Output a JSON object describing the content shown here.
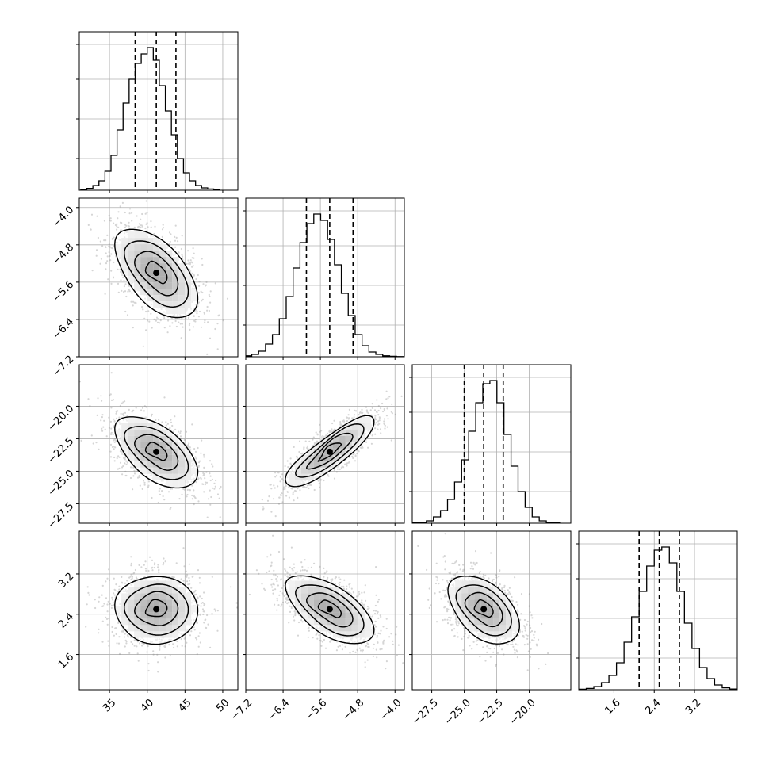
{
  "chart_data": {
    "type": "corner",
    "n_params": 4,
    "params": [
      {
        "range": [
          31,
          52
        ],
        "ticks": [
          35,
          40,
          45,
          50
        ],
        "tick_labels": [
          "35",
          "40",
          "45",
          "50"
        ],
        "mean": 41.2,
        "sd": 2.6,
        "quantiles": [
          38.4,
          41.2,
          43.8
        ],
        "hist": [
          0.5,
          1.2,
          3,
          6,
          12,
          22,
          38,
          55,
          70,
          80,
          86,
          90,
          82,
          66,
          50,
          35,
          20,
          11,
          6,
          3,
          1.5,
          0.8,
          0.3
        ],
        "hist_range": [
          31.2,
          49.6
        ]
      },
      {
        "range": [
          -7.2,
          -3.8
        ],
        "ticks": [
          -7.2,
          -6.4,
          -5.6,
          -4.8,
          -4.0
        ],
        "tick_labels": [
          "−7.2",
          "−6.4",
          "−5.6",
          "−4.8",
          "−4.0"
        ],
        "mean": -5.4,
        "sd": 0.45,
        "quantiles": [
          -5.9,
          -5.4,
          -4.9
        ],
        "hist": [
          0.6,
          1.5,
          3.5,
          8,
          14,
          24,
          38,
          56,
          72,
          84,
          90,
          86,
          74,
          58,
          40,
          26,
          14,
          7,
          3,
          1.5,
          0.6,
          0.3,
          0.1
        ],
        "hist_range": [
          -7.22,
          -3.82
        ]
      },
      {
        "range": [
          -29.0,
          -16.8
        ],
        "ticks": [
          -27.5,
          -25.0,
          -22.5,
          -20.0
        ],
        "tick_labels": [
          "−27.5",
          "−25.0",
          "−22.5",
          "−20.0"
        ],
        "mean": -23.5,
        "sd": 1.3,
        "quantiles": [
          -25.0,
          -23.5,
          -22.0
        ],
        "hist": [
          0.2,
          0.6,
          1.5,
          4,
          8,
          15,
          26,
          40,
          58,
          76,
          88,
          90,
          76,
          56,
          36,
          20,
          10,
          4,
          1.5,
          0.5,
          0.2
        ],
        "hist_range": [
          -29.0,
          -17.6
        ]
      },
      {
        "range": [
          0.9,
          4.05
        ],
        "ticks": [
          1.6,
          2.4,
          3.2
        ],
        "tick_labels": [
          "1.6",
          "2.4",
          "3.2"
        ],
        "mean": 2.5,
        "sd": 0.32,
        "quantiles": [
          2.1,
          2.5,
          2.9
        ],
        "hist": [
          0.3,
          0.8,
          2,
          4.5,
          9,
          17,
          30,
          46,
          62,
          78,
          88,
          90,
          80,
          62,
          42,
          26,
          14,
          7,
          3,
          1.2,
          0.4
        ],
        "hist_range": [
          0.9,
          4.05
        ]
      }
    ],
    "hist_yticks_fraction": [
      0.2,
      0.45,
      0.7,
      0.92
    ],
    "correlations": [
      [
        0,
        1,
        -0.55
      ],
      [
        0,
        2,
        -0.55
      ],
      [
        0,
        3,
        0.0
      ],
      [
        1,
        2,
        0.85
      ],
      [
        1,
        3,
        -0.6
      ],
      [
        2,
        3,
        -0.45
      ]
    ],
    "grid": true,
    "colors": {
      "axis": "#000000",
      "grid": "#b0b0b0",
      "points": "#888888",
      "density": "#000000"
    }
  }
}
